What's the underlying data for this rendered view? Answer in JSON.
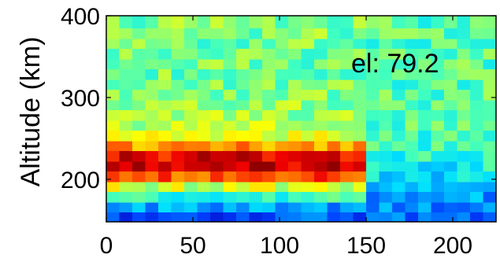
{
  "chart_data": {
    "type": "heatmap",
    "title": "",
    "xlabel": "",
    "ylabel": "Altitude (km)",
    "annotation": "el: 79.2",
    "xlim": [
      0,
      225
    ],
    "ylim": [
      148,
      400
    ],
    "x_ticks": [
      0,
      50,
      100,
      150,
      200
    ],
    "y_ticks": [
      200,
      300,
      400
    ],
    "cell_width": 7.5,
    "alt_bins": [
      {
        "lo": 148,
        "hi": 160
      },
      {
        "lo": 160,
        "hi": 172
      },
      {
        "lo": 172,
        "hi": 185
      },
      {
        "lo": 185,
        "hi": 197
      },
      {
        "lo": 197,
        "hi": 210
      },
      {
        "lo": 210,
        "hi": 222
      },
      {
        "lo": 222,
        "hi": 235
      },
      {
        "lo": 235,
        "hi": 247
      },
      {
        "lo": 247,
        "hi": 260
      },
      {
        "lo": 260,
        "hi": 272
      },
      {
        "lo": 272,
        "hi": 285
      },
      {
        "lo": 285,
        "hi": 297
      },
      {
        "lo": 297,
        "hi": 310
      },
      {
        "lo": 310,
        "hi": 322
      },
      {
        "lo": 322,
        "hi": 335
      },
      {
        "lo": 335,
        "hi": 347
      },
      {
        "lo": 347,
        "hi": 360
      },
      {
        "lo": 360,
        "hi": 372
      },
      {
        "lo": 372,
        "hi": 385
      },
      {
        "lo": 385,
        "hi": 400
      }
    ],
    "profile": [
      {
        "x_max": 150,
        "levels": [
          0.12,
          0.22,
          0.38,
          0.55,
          0.8,
          0.93,
          0.9,
          0.72,
          0.58,
          0.52,
          0.5,
          0.48,
          0.47,
          0.46,
          0.45,
          0.45,
          0.44,
          0.45,
          0.46,
          0.46
        ]
      },
      {
        "x_max": 225,
        "levels": [
          0.14,
          0.2,
          0.22,
          0.26,
          0.3,
          0.34,
          0.36,
          0.38,
          0.41,
          0.42,
          0.42,
          0.42,
          0.42,
          0.42,
          0.42,
          0.42,
          0.42,
          0.42,
          0.42,
          0.42
        ]
      }
    ],
    "noise": 0.09,
    "colormap": [
      "#0000bf",
      "#0040ff",
      "#0090ff",
      "#00e0ff",
      "#40ffbf",
      "#a0ff60",
      "#ffff00",
      "#ffb000",
      "#ff5000",
      "#ee0000",
      "#900000"
    ]
  }
}
